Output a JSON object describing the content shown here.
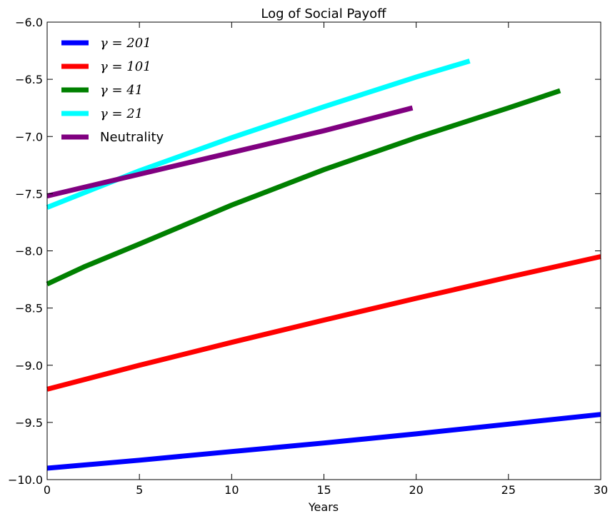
{
  "chart_data": {
    "type": "line",
    "title": "Log of Social Payoff",
    "xlabel": "Years",
    "ylabel": "",
    "xlim": [
      0,
      30
    ],
    "ylim": [
      -10.0,
      -6.0
    ],
    "x_ticks": [
      "0",
      "5",
      "10",
      "15",
      "20",
      "25",
      "30"
    ],
    "y_ticks": [
      "−6.0",
      "−6.5",
      "−7.0",
      "−7.5",
      "−8.0",
      "−8.5",
      "−9.0",
      "−9.5",
      "−10.0"
    ],
    "grid": false,
    "legend_position": "top-left",
    "series": [
      {
        "name": "γ = 201",
        "color": "#0000ff",
        "x": [
          0,
          5,
          10,
          15,
          20,
          25,
          30
        ],
        "y": [
          -9.9,
          -9.83,
          -9.755,
          -9.68,
          -9.6,
          -9.515,
          -9.43
        ]
      },
      {
        "name": "γ = 101",
        "color": "#ff0000",
        "x": [
          0,
          5,
          10,
          15,
          20,
          25,
          30
        ],
        "y": [
          -9.21,
          -9.0,
          -8.8,
          -8.605,
          -8.415,
          -8.23,
          -8.05
        ]
      },
      {
        "name": "γ = 41",
        "color": "#008000",
        "x": [
          0,
          2,
          5,
          10,
          15,
          20,
          25,
          27.8
        ],
        "y": [
          -8.29,
          -8.14,
          -7.94,
          -7.6,
          -7.29,
          -7.01,
          -6.75,
          -6.6
        ]
      },
      {
        "name": "γ = 21",
        "color": "#00ffff",
        "x": [
          0,
          5,
          10,
          15,
          20,
          22.9
        ],
        "y": [
          -7.62,
          -7.3,
          -7.01,
          -6.74,
          -6.48,
          -6.34
        ]
      },
      {
        "name": "Neutrality",
        "color": "#800080",
        "x": [
          0,
          5,
          10,
          15,
          19.8
        ],
        "y": [
          -7.52,
          -7.33,
          -7.14,
          -6.95,
          -6.75
        ]
      }
    ]
  }
}
